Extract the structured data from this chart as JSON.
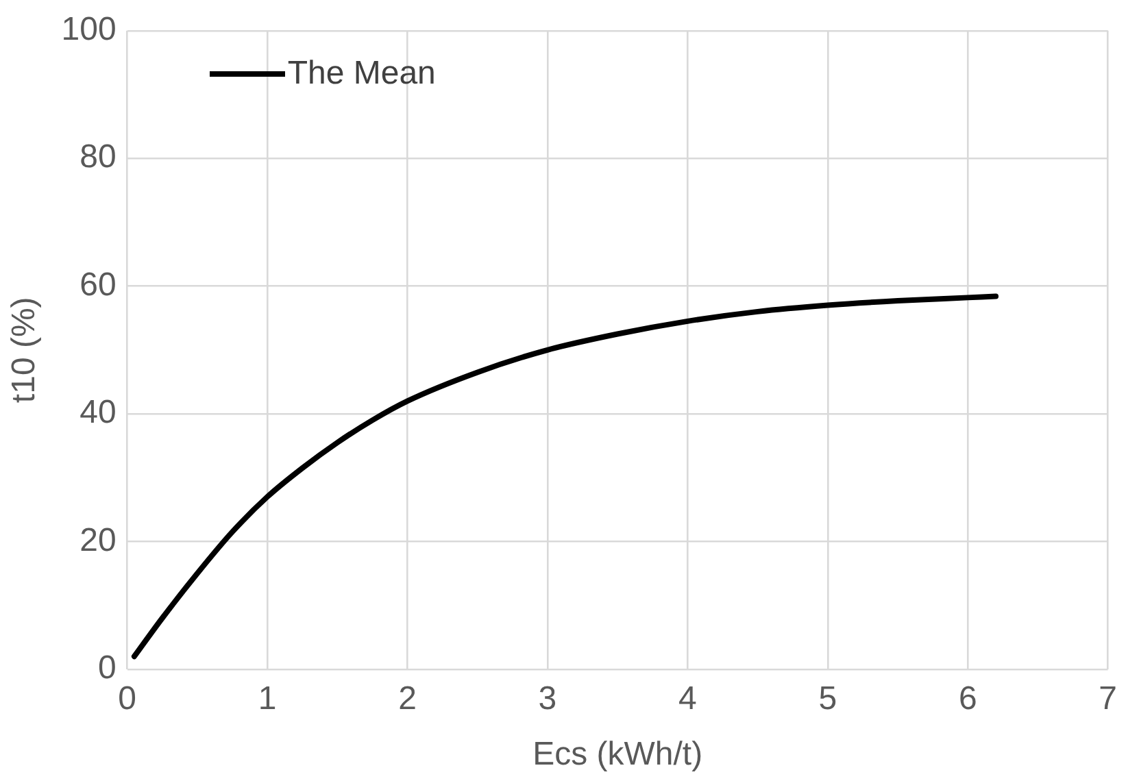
{
  "chart_data": {
    "type": "line",
    "xlabel": "Ecs (kWh/t)",
    "ylabel": "t10 (%)",
    "xlim": [
      0,
      7
    ],
    "xticks": [
      0,
      1,
      2,
      3,
      4,
      5,
      6,
      7
    ],
    "ylim": [
      0,
      100
    ],
    "yticks": [
      0,
      20,
      40,
      60,
      80,
      100
    ],
    "grid": true,
    "legend": "top left",
    "marker": "none",
    "line_style": "solid",
    "series": [
      {
        "name": "The Mean",
        "color": "#000000",
        "x": [
          0.05,
          0.25,
          0.5,
          0.75,
          1,
          1.25,
          1.5,
          1.75,
          2,
          2.5,
          3,
          3.5,
          4,
          4.5,
          5,
          5.5,
          6,
          6.2
        ],
        "values": [
          2,
          8,
          15,
          21.5,
          27,
          31.5,
          35.5,
          39,
          42,
          46.5,
          50,
          52.5,
          54.5,
          56,
          57,
          57.7,
          58.2,
          58.4
        ]
      }
    ]
  }
}
